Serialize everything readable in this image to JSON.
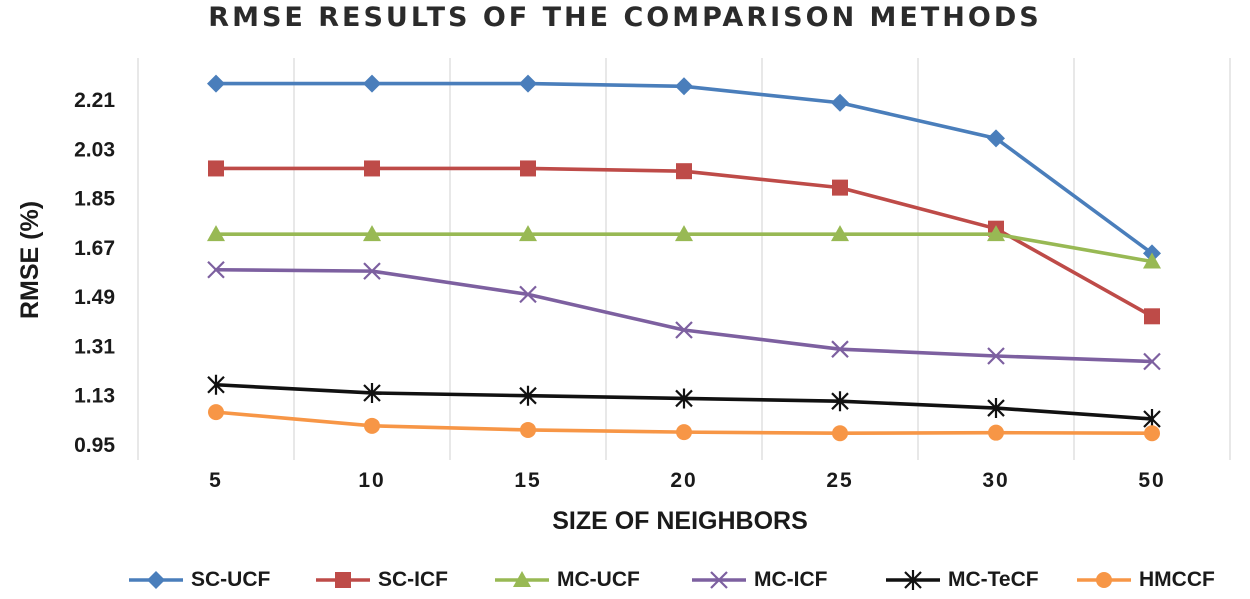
{
  "chart_data": {
    "type": "line",
    "title": "RMSE RESULTS OF THE COMPARISON METHODS",
    "xlabel": "SIZE OF NEIGHBORS",
    "ylabel": "RMSE (%)",
    "categories": [
      "5",
      "10",
      "15",
      "20",
      "25",
      "30",
      "50"
    ],
    "yticks": [
      "0.95",
      "1.13",
      "1.31",
      "1.49",
      "1.67",
      "1.85",
      "2.03",
      "2.21"
    ],
    "ylim": [
      0.95,
      2.3
    ],
    "grid": "vertical",
    "legend_position": "bottom",
    "series": [
      {
        "name": "SC-UCF",
        "color": "#4a7ebb",
        "marker": "diamond",
        "values": [
          2.27,
          2.27,
          2.27,
          2.26,
          2.2,
          2.07,
          1.65
        ]
      },
      {
        "name": "SC-ICF",
        "color": "#be4b48",
        "marker": "square",
        "values": [
          1.96,
          1.96,
          1.96,
          1.95,
          1.89,
          1.74,
          1.42
        ]
      },
      {
        "name": "MC-UCF",
        "color": "#98b954",
        "marker": "triangle",
        "values": [
          1.72,
          1.72,
          1.72,
          1.72,
          1.72,
          1.72,
          1.62
        ]
      },
      {
        "name": "MC-ICF",
        "color": "#7d60a0",
        "marker": "x",
        "values": [
          1.59,
          1.585,
          1.5,
          1.37,
          1.3,
          1.275,
          1.255
        ]
      },
      {
        "name": "MC-TeCF",
        "color": "#111111",
        "marker": "star",
        "values": [
          1.17,
          1.14,
          1.13,
          1.12,
          1.11,
          1.085,
          1.045
        ]
      },
      {
        "name": "HMCCF",
        "color": "#f79646",
        "marker": "circle",
        "values": [
          1.07,
          1.02,
          1.005,
          0.997,
          0.993,
          0.995,
          0.993
        ]
      }
    ]
  }
}
